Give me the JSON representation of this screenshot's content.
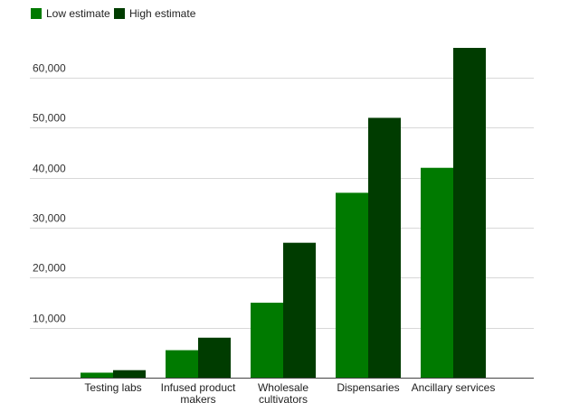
{
  "chart_data": {
    "type": "bar",
    "categories": [
      [
        "Testing labs"
      ],
      [
        "Infused product",
        "makers"
      ],
      [
        "Wholesale",
        "cultivators"
      ],
      [
        "Dispensaries"
      ],
      [
        "Ancillary services"
      ]
    ],
    "series": [
      {
        "name": "Low estimate",
        "color": "#007a00",
        "values": [
          1000,
          5500,
          15000,
          37000,
          42000
        ]
      },
      {
        "name": "High estimate",
        "color": "#003c00",
        "values": [
          1500,
          8000,
          27000,
          52000,
          66000
        ]
      }
    ],
    "yticks": [
      10000,
      20000,
      30000,
      40000,
      50000,
      60000
    ],
    "ytick_labels": [
      "10,000",
      "20,000",
      "30,000",
      "40,000",
      "50,000",
      "60,000"
    ],
    "ylim": [
      0,
      66000
    ],
    "grid": true,
    "legend_position": "top-left"
  }
}
